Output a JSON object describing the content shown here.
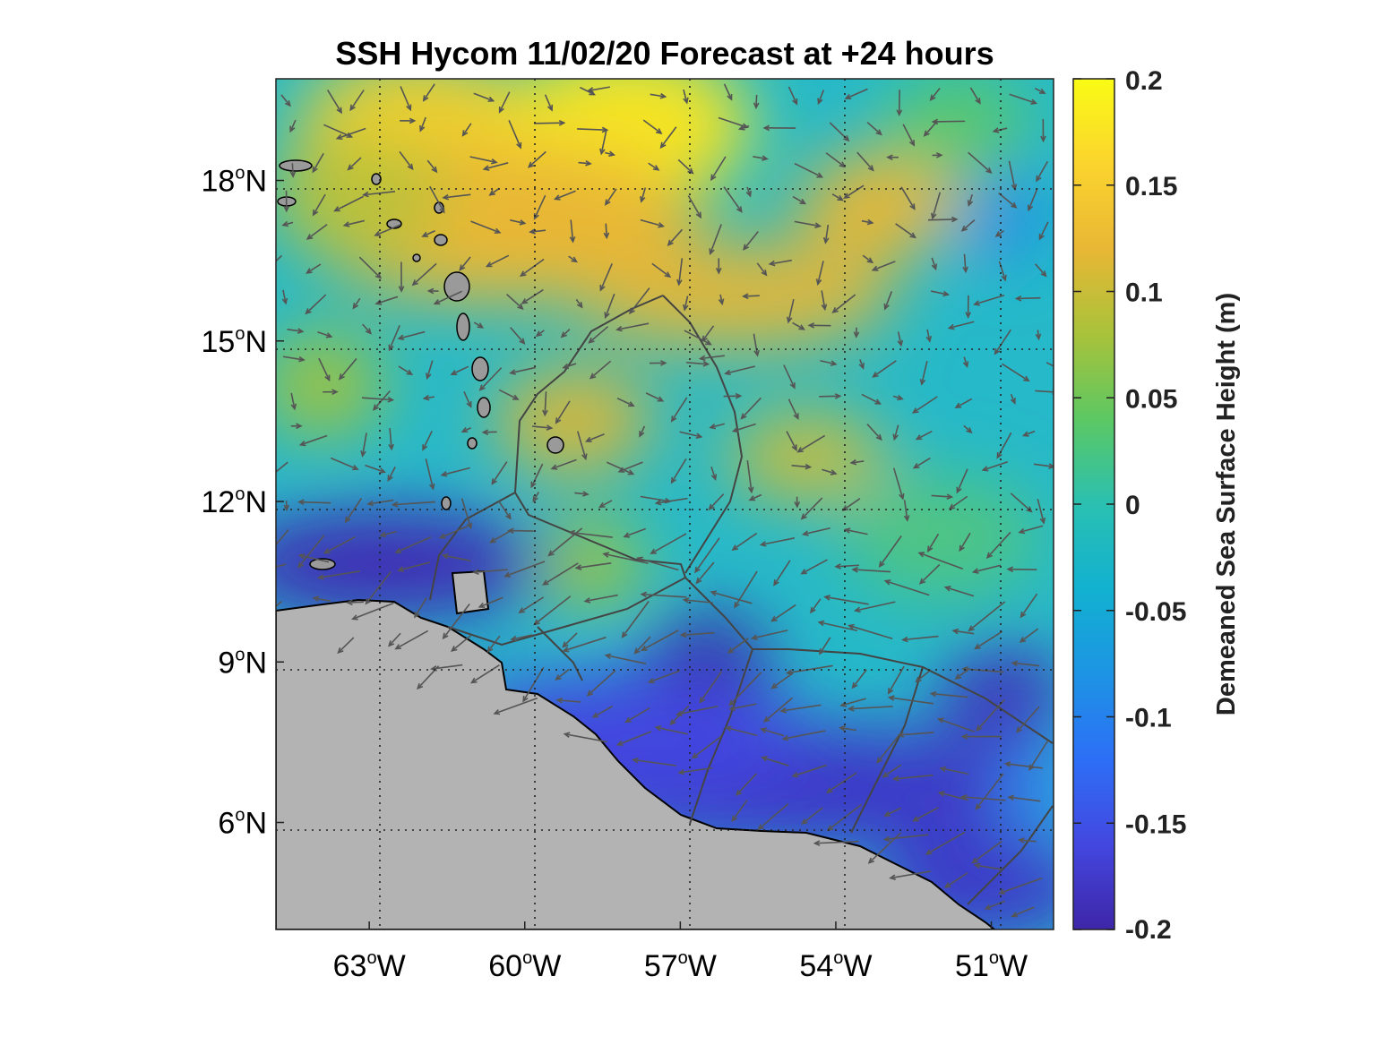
{
  "title": "SSH Hycom 11/02/20 Forecast at +24 hours",
  "colorbar": {
    "label": "Demeaned Sea Surface Height (m)",
    "min": -0.2,
    "max": 0.2,
    "ticks": [
      "0.2",
      "0.15",
      "0.1",
      "0.05",
      "0",
      "-0.05",
      "-0.1",
      "-0.15",
      "-0.2"
    ],
    "colormap": [
      "#3e26a8",
      "#4347e0",
      "#2d6ff6",
      "#1d94e4",
      "#12b1d0",
      "#2ac0b1",
      "#5cc863",
      "#a9c23a",
      "#e8b735",
      "#fbd42e",
      "#f9fb15"
    ]
  },
  "map": {
    "lon_range": [
      -64.8,
      -49.8
    ],
    "lat_range": [
      4.0,
      19.9
    ],
    "lon_ticks": [
      {
        "deg": "63",
        "unit": "o",
        "dir": "W",
        "value": -63
      },
      {
        "deg": "60",
        "unit": "o",
        "dir": "W",
        "value": -60
      },
      {
        "deg": "57",
        "unit": "o",
        "dir": "W",
        "value": -57
      },
      {
        "deg": "54",
        "unit": "o",
        "dir": "W",
        "value": -54
      },
      {
        "deg": "51",
        "unit": "o",
        "dir": "W",
        "value": -51
      }
    ],
    "lat_ticks": [
      {
        "deg": "18",
        "unit": "o",
        "dir": "N",
        "value": 18
      },
      {
        "deg": "15",
        "unit": "o",
        "dir": "N",
        "value": 15
      },
      {
        "deg": "12",
        "unit": "o",
        "dir": "N",
        "value": 12
      },
      {
        "deg": "9",
        "unit": "o",
        "dir": "N",
        "value": 9
      },
      {
        "deg": "6",
        "unit": "o",
        "dir": "N",
        "value": 6
      }
    ],
    "grid": true,
    "land_color": "#b3b3b3",
    "vector_color": "#555555"
  }
}
